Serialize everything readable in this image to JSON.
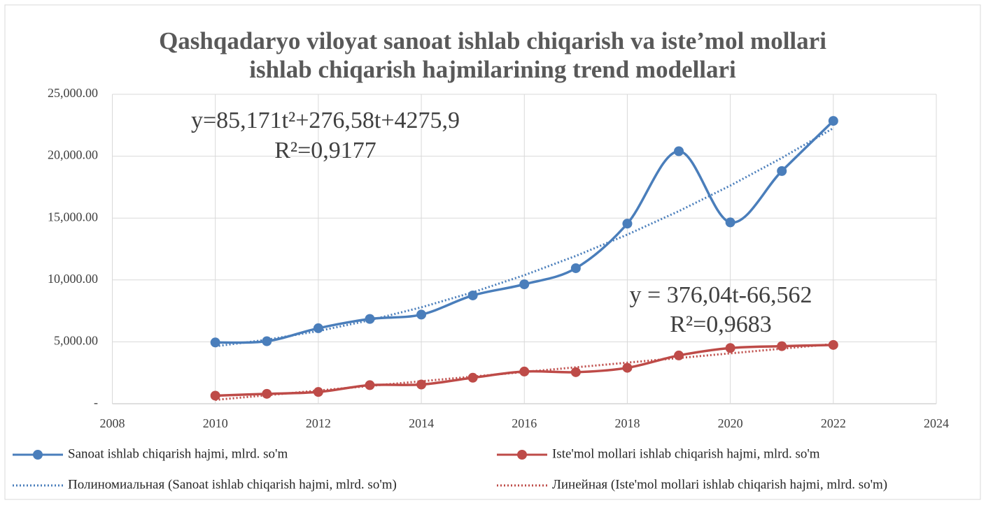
{
  "chart_data": {
    "type": "line",
    "title": [
      "Qashqadaryo viloyat sanoat ishlab chiqarish va iste’mol mollari",
      "ishlab chiqarish hajmilarining trend modellari"
    ],
    "x": [
      2010,
      2011,
      2012,
      2013,
      2014,
      2015,
      2016,
      2017,
      2018,
      2019,
      2020,
      2021,
      2022
    ],
    "series": [
      {
        "name": "Sanoat ishlab chiqarish hajmi, mlrd. so'm",
        "color": "#4a7ebb",
        "style": "solid",
        "markers": true,
        "values": [
          4950,
          5050,
          6100,
          6850,
          7200,
          8750,
          9650,
          10950,
          14550,
          20400,
          14650,
          18800,
          22850
        ]
      },
      {
        "name": "Iste'mol mollari ishlab chiqarish hajmi, mlrd. so'm",
        "color": "#be4b48",
        "style": "solid",
        "markers": true,
        "values": [
          650,
          800,
          950,
          1500,
          1550,
          2100,
          2600,
          2550,
          2900,
          3900,
          4500,
          4650,
          4750
        ]
      },
      {
        "name": "Полиномиальная (Sanoat ishlab chiqarish hajmi, mlrd. so'm)",
        "color": "#4a7ebb",
        "style": "dotted",
        "markers": false,
        "values": [
          4638,
          5170,
          5872,
          6745,
          7788,
          9002,
          10385,
          11939,
          13664,
          15559,
          17624,
          19860,
          22265
        ]
      },
      {
        "name": "Линейная (Iste'mol mollari ishlab chiqarish hajmi, mlrd. so'm)",
        "color": "#be4b48",
        "style": "dotted",
        "markers": false,
        "values": [
          309,
          686,
          1062,
          1438,
          1814,
          2190,
          2566,
          2942,
          3318,
          3694,
          4070,
          4446,
          4822
        ]
      }
    ],
    "xlim": [
      2008,
      2024
    ],
    "xticks": [
      2008,
      2010,
      2012,
      2014,
      2016,
      2018,
      2020,
      2022,
      2024
    ],
    "ylim": [
      0,
      25000
    ],
    "yticks": [
      {
        "value": 0,
        "label": "-"
      },
      {
        "value": 5000,
        "label": "5,000.00"
      },
      {
        "value": 10000,
        "label": "10,000.00"
      },
      {
        "value": 15000,
        "label": "15,000.00"
      },
      {
        "value": 20000,
        "label": "20,000.00"
      },
      {
        "value": 25000,
        "label": "25,000.00"
      }
    ],
    "grid": true,
    "legend": "bottom",
    "annotations": [
      {
        "equation": "y=85,171t²+276,58t+4275,9",
        "r2": "R²=0,9177"
      },
      {
        "equation": "y = 376,04t-66,562",
        "r2": "R²=0,9683"
      }
    ]
  }
}
